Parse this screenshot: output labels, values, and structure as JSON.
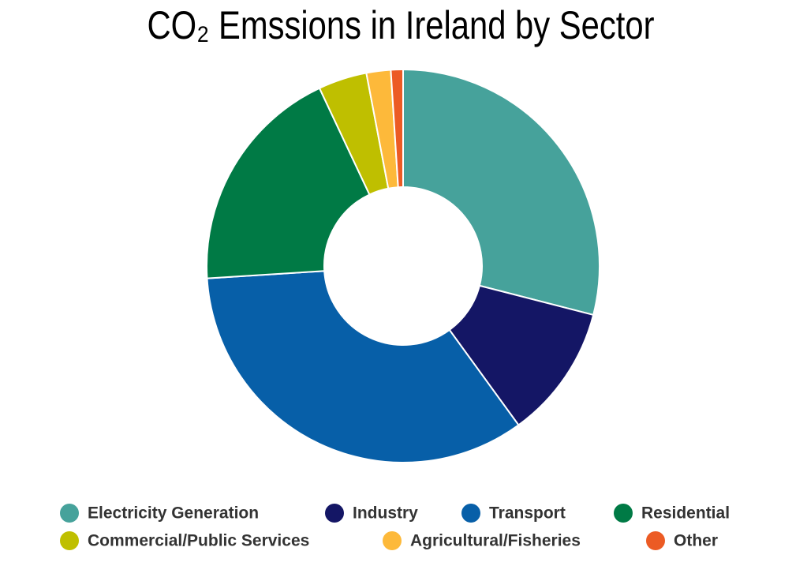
{
  "chart_data": {
    "type": "donut",
    "title": "CO₂ Emssions in Ireland by Sector",
    "categories": [
      "Electricity Generation",
      "Industry",
      "Transport",
      "Residential",
      "Commercial/Public Services",
      "Agricultural/Fisheries",
      "Other"
    ],
    "values": [
      29,
      11,
      34,
      19,
      4,
      2,
      1
    ],
    "colors": [
      "#46a29b",
      "#141665",
      "#075fa8",
      "#007a45",
      "#bfbf00",
      "#fdb93a",
      "#ec5b24"
    ],
    "legend": "bottom"
  }
}
